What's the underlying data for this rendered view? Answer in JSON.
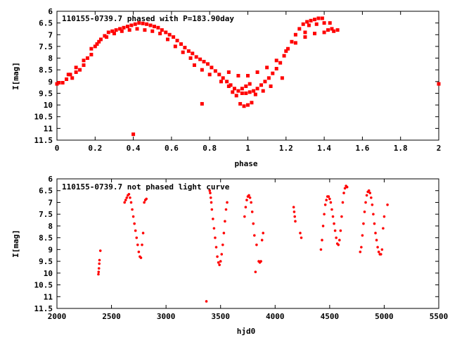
{
  "chart_data": [
    {
      "type": "scatter",
      "title": "110155-0739.7 phased with P=183.90day",
      "xlabel": "phase",
      "ylabel": "I[mag]",
      "xlim": [
        0,
        2
      ],
      "ylim": [
        11.5,
        6
      ],
      "y_inverted": true,
      "grid": false,
      "marker_color": "#ff0000",
      "x_ticks": [
        "0",
        "0.2",
        "0.4",
        "0.6",
        "0.8",
        "1",
        "1.2",
        "1.4",
        "1.6",
        "1.8",
        "2"
      ],
      "y_ticks": [
        "6",
        "6.5",
        "7",
        "7.5",
        "8",
        "8.5",
        "9",
        "9.5",
        "10",
        "10.5",
        "11",
        "11.5"
      ],
      "points": [
        [
          0.0,
          9.1
        ],
        [
          0.01,
          9.05
        ],
        [
          0.03,
          9.05
        ],
        [
          0.05,
          8.9
        ],
        [
          0.07,
          8.7
        ],
        [
          0.08,
          8.85
        ],
        [
          0.1,
          8.6
        ],
        [
          0.12,
          8.5
        ],
        [
          0.14,
          8.3
        ],
        [
          0.16,
          8.0
        ],
        [
          0.18,
          7.85
        ],
        [
          0.2,
          7.5
        ],
        [
          0.21,
          7.4
        ],
        [
          0.23,
          7.2
        ],
        [
          0.25,
          7.05
        ],
        [
          0.27,
          6.9
        ],
        [
          0.29,
          6.85
        ],
        [
          0.31,
          6.8
        ],
        [
          0.33,
          6.75
        ],
        [
          0.35,
          6.7
        ],
        [
          0.37,
          6.65
        ],
        [
          0.39,
          6.6
        ],
        [
          0.41,
          6.55
        ],
        [
          0.43,
          6.5
        ],
        [
          0.45,
          6.52
        ],
        [
          0.47,
          6.55
        ],
        [
          0.49,
          6.6
        ],
        [
          0.51,
          6.65
        ],
        [
          0.53,
          6.7
        ],
        [
          0.55,
          6.8
        ],
        [
          0.57,
          6.9
        ],
        [
          0.59,
          7.0
        ],
        [
          0.61,
          7.1
        ],
        [
          0.63,
          7.25
        ],
        [
          0.65,
          7.4
        ],
        [
          0.67,
          7.55
        ],
        [
          0.69,
          7.7
        ],
        [
          0.71,
          7.8
        ],
        [
          0.73,
          7.95
        ],
        [
          0.75,
          8.05
        ],
        [
          0.77,
          8.15
        ],
        [
          0.79,
          8.25
        ],
        [
          0.81,
          8.4
        ],
        [
          0.83,
          8.55
        ],
        [
          0.85,
          8.7
        ],
        [
          0.87,
          8.85
        ],
        [
          0.89,
          9.0
        ],
        [
          0.91,
          9.15
        ],
        [
          0.93,
          9.3
        ],
        [
          0.95,
          9.4
        ],
        [
          0.97,
          9.5
        ],
        [
          0.99,
          9.5
        ],
        [
          1.01,
          9.45
        ],
        [
          1.03,
          9.4
        ],
        [
          1.05,
          9.3
        ],
        [
          1.07,
          9.15
        ],
        [
          1.09,
          9.0
        ],
        [
          1.11,
          8.85
        ],
        [
          1.13,
          8.65
        ],
        [
          1.15,
          8.45
        ],
        [
          1.17,
          8.2
        ],
        [
          1.19,
          7.9
        ],
        [
          1.21,
          7.6
        ],
        [
          1.23,
          7.3
        ],
        [
          1.25,
          7.0
        ],
        [
          1.27,
          6.75
        ],
        [
          1.29,
          6.55
        ],
        [
          1.31,
          6.45
        ],
        [
          1.33,
          6.4
        ],
        [
          1.35,
          6.35
        ],
        [
          1.37,
          6.3
        ],
        [
          1.39,
          6.3
        ],
        [
          0.98,
          10.05
        ],
        [
          1.0,
          10.0
        ],
        [
          1.02,
          9.9
        ],
        [
          0.96,
          9.95
        ],
        [
          0.94,
          9.6
        ],
        [
          0.92,
          9.45
        ],
        [
          0.9,
          9.2
        ],
        [
          0.86,
          9.0
        ],
        [
          0.8,
          8.7
        ],
        [
          0.76,
          8.5
        ],
        [
          0.72,
          8.3
        ],
        [
          0.7,
          8.0
        ],
        [
          0.66,
          7.75
        ],
        [
          0.62,
          7.5
        ],
        [
          0.58,
          7.2
        ],
        [
          0.54,
          6.95
        ],
        [
          0.5,
          6.85
        ],
        [
          0.46,
          6.8
        ],
        [
          0.42,
          6.75
        ],
        [
          0.38,
          6.8
        ],
        [
          0.34,
          6.85
        ],
        [
          0.3,
          6.95
        ],
        [
          0.26,
          7.1
        ],
        [
          0.22,
          7.3
        ],
        [
          0.18,
          7.6
        ],
        [
          0.14,
          8.1
        ],
        [
          0.1,
          8.4
        ],
        [
          0.06,
          8.7
        ],
        [
          0.9,
          8.6
        ],
        [
          0.95,
          8.75
        ],
        [
          1.0,
          8.75
        ],
        [
          1.05,
          8.6
        ],
        [
          1.1,
          8.4
        ],
        [
          1.15,
          8.1
        ],
        [
          1.2,
          7.7
        ],
        [
          1.25,
          7.35
        ],
        [
          1.3,
          7.1
        ],
        [
          1.35,
          6.95
        ],
        [
          1.4,
          6.9
        ],
        [
          1.45,
          6.85
        ],
        [
          1.3,
          6.9
        ],
        [
          1.32,
          6.6
        ],
        [
          1.36,
          6.55
        ],
        [
          1.4,
          6.5
        ],
        [
          1.42,
          6.8
        ],
        [
          1.44,
          6.75
        ],
        [
          1.47,
          6.8
        ],
        [
          1.43,
          6.5
        ],
        [
          0.76,
          9.95
        ],
        [
          0.4,
          11.25
        ],
        [
          2.0,
          9.1
        ],
        [
          1.18,
          8.85
        ],
        [
          1.12,
          9.2
        ],
        [
          1.08,
          9.4
        ],
        [
          1.04,
          9.55
        ],
        [
          0.99,
          9.2
        ],
        [
          0.97,
          9.3
        ],
        [
          1.01,
          9.1
        ]
      ]
    },
    {
      "type": "scatter",
      "title": "110155-0739.7 not phased light curve",
      "xlabel": "hjd0",
      "ylabel": "I[mag]",
      "xlim": [
        2000,
        5500
      ],
      "ylim": [
        11.5,
        6
      ],
      "y_inverted": true,
      "grid": false,
      "marker_color": "#ff0000",
      "x_ticks": [
        "2000",
        "2500",
        "3000",
        "3500",
        "4000",
        "4500",
        "5000",
        "5500"
      ],
      "y_ticks": [
        "6",
        "6.5",
        "7",
        "7.5",
        "8",
        "8.5",
        "9",
        "9.5",
        "10",
        "10.5",
        "11",
        "11.5"
      ],
      "points": [
        [
          2380,
          10.05
        ],
        [
          2382,
          9.95
        ],
        [
          2385,
          9.8
        ],
        [
          2388,
          9.6
        ],
        [
          2390,
          9.45
        ],
        [
          2398,
          9.05
        ],
        [
          2620,
          7.0
        ],
        [
          2630,
          6.9
        ],
        [
          2640,
          6.8
        ],
        [
          2650,
          6.7
        ],
        [
          2660,
          6.65
        ],
        [
          2670,
          6.8
        ],
        [
          2680,
          7.0
        ],
        [
          2690,
          7.3
        ],
        [
          2700,
          7.6
        ],
        [
          2710,
          7.9
        ],
        [
          2720,
          8.2
        ],
        [
          2730,
          8.5
        ],
        [
          2740,
          8.8
        ],
        [
          2750,
          9.1
        ],
        [
          2760,
          9.3
        ],
        [
          2770,
          9.35
        ],
        [
          2780,
          8.8
        ],
        [
          2790,
          8.3
        ],
        [
          2800,
          7.0
        ],
        [
          2810,
          6.9
        ],
        [
          2820,
          6.85
        ],
        [
          3370,
          11.2
        ],
        [
          3400,
          6.5
        ],
        [
          3405,
          6.6
        ],
        [
          3410,
          6.8
        ],
        [
          3415,
          7.0
        ],
        [
          3420,
          7.3
        ],
        [
          3430,
          7.7
        ],
        [
          3440,
          8.1
        ],
        [
          3450,
          8.5
        ],
        [
          3460,
          8.9
        ],
        [
          3470,
          9.3
        ],
        [
          3480,
          9.55
        ],
        [
          3490,
          9.65
        ],
        [
          3500,
          9.5
        ],
        [
          3510,
          9.2
        ],
        [
          3520,
          8.8
        ],
        [
          3530,
          8.3
        ],
        [
          3540,
          7.8
        ],
        [
          3550,
          7.3
        ],
        [
          3560,
          7.0
        ],
        [
          3720,
          7.6
        ],
        [
          3730,
          7.2
        ],
        [
          3740,
          6.9
        ],
        [
          3750,
          6.75
        ],
        [
          3760,
          6.7
        ],
        [
          3770,
          6.8
        ],
        [
          3780,
          7.0
        ],
        [
          3790,
          7.4
        ],
        [
          3800,
          7.9
        ],
        [
          3810,
          8.4
        ],
        [
          3820,
          9.95
        ],
        [
          3830,
          8.8
        ],
        [
          3850,
          9.5
        ],
        [
          3860,
          9.55
        ],
        [
          3870,
          9.5
        ],
        [
          3880,
          8.6
        ],
        [
          3890,
          8.3
        ],
        [
          4170,
          7.2
        ],
        [
          4175,
          7.4
        ],
        [
          4180,
          7.6
        ],
        [
          4185,
          7.8
        ],
        [
          4230,
          8.3
        ],
        [
          4240,
          8.5
        ],
        [
          4420,
          9.0
        ],
        [
          4430,
          8.6
        ],
        [
          4440,
          8.0
        ],
        [
          4450,
          7.5
        ],
        [
          4460,
          7.1
        ],
        [
          4470,
          6.9
        ],
        [
          4480,
          6.75
        ],
        [
          4490,
          6.75
        ],
        [
          4500,
          6.85
        ],
        [
          4510,
          7.0
        ],
        [
          4520,
          7.3
        ],
        [
          4530,
          7.6
        ],
        [
          4540,
          7.9
        ],
        [
          4550,
          8.2
        ],
        [
          4560,
          8.5
        ],
        [
          4570,
          8.75
        ],
        [
          4580,
          8.8
        ],
        [
          4590,
          8.6
        ],
        [
          4600,
          8.2
        ],
        [
          4610,
          7.6
        ],
        [
          4620,
          7.0
        ],
        [
          4630,
          6.6
        ],
        [
          4640,
          6.4
        ],
        [
          4650,
          6.3
        ],
        [
          4660,
          6.35
        ],
        [
          4780,
          9.1
        ],
        [
          4790,
          8.9
        ],
        [
          4800,
          8.4
        ],
        [
          4810,
          7.9
        ],
        [
          4820,
          7.4
        ],
        [
          4830,
          7.0
        ],
        [
          4840,
          6.7
        ],
        [
          4850,
          6.55
        ],
        [
          4860,
          6.5
        ],
        [
          4870,
          6.6
        ],
        [
          4880,
          6.8
        ],
        [
          4890,
          7.1
        ],
        [
          4900,
          7.5
        ],
        [
          4910,
          7.9
        ],
        [
          4920,
          8.3
        ],
        [
          4930,
          8.6
        ],
        [
          4940,
          8.9
        ],
        [
          4950,
          9.1
        ],
        [
          4960,
          9.2
        ],
        [
          4970,
          9.2
        ],
        [
          4980,
          9.0
        ],
        [
          4990,
          8.1
        ],
        [
          5000,
          7.6
        ],
        [
          5030,
          7.1
        ]
      ]
    }
  ]
}
